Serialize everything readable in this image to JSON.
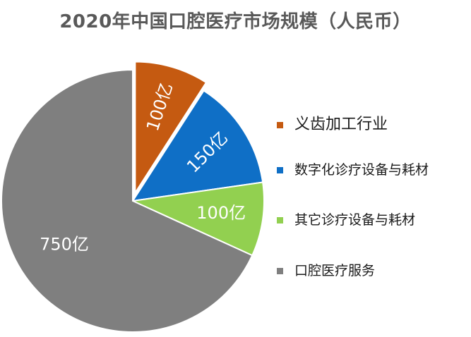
{
  "chart_data": {
    "type": "pie",
    "title": "2020年中国口腔医疗市场规模（人民币）",
    "slices": [
      {
        "name": "义齿加工行业",
        "value": 100,
        "label": "100亿",
        "color": "#C55A11"
      },
      {
        "name": "数字化诊疗设备与耗材",
        "value": 150,
        "label": "150亿",
        "color": "#0F6FC6"
      },
      {
        "name": "其它诊疗设备与耗材",
        "value": 100,
        "label": "100亿",
        "color": "#92D050"
      },
      {
        "name": "口腔医疗服务",
        "value": 750,
        "label": "750亿",
        "color": "#7F7F7F"
      }
    ],
    "legend_position": "right",
    "exploded_slice": "义齿加工行业"
  }
}
